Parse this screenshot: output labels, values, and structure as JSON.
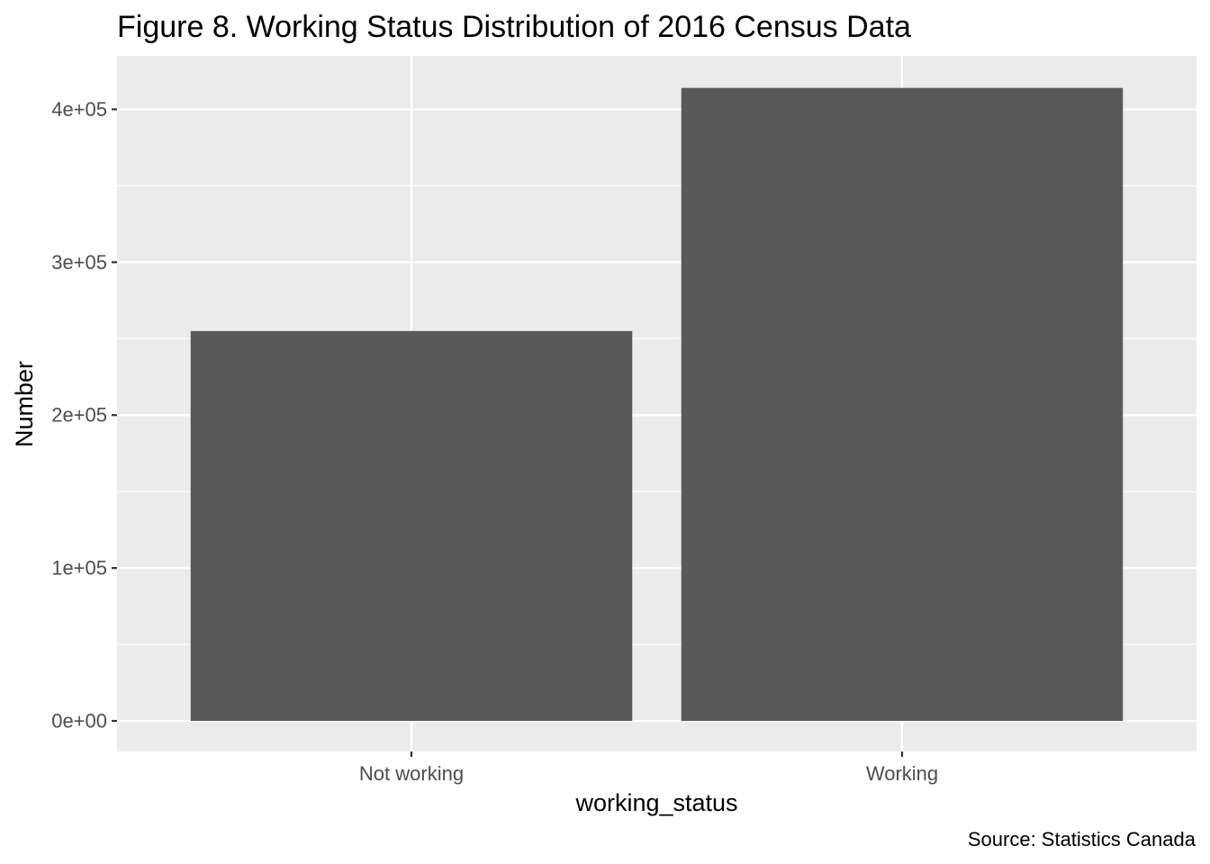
{
  "chart_data": {
    "type": "bar",
    "title": "Figure 8. Working Status Distribution of 2016 Census Data",
    "xlabel": "working_status",
    "ylabel": "Number",
    "caption": "Source: Statistics Canada",
    "categories": [
      "Not working",
      "Working"
    ],
    "values": [
      255000,
      414000
    ],
    "ylim": [
      -20000,
      435000
    ],
    "yticks": [
      0,
      100000,
      200000,
      300000,
      400000
    ],
    "ytick_labels": [
      "0e+00",
      "1e+05",
      "2e+05",
      "3e+05",
      "4e+05"
    ],
    "grid": true,
    "legend": "none",
    "colors": {
      "panel": "#EBEBEB",
      "grid": "#FFFFFF",
      "bar": "#595959",
      "tick_text": "#4D4D4D",
      "text": "#000000"
    }
  }
}
